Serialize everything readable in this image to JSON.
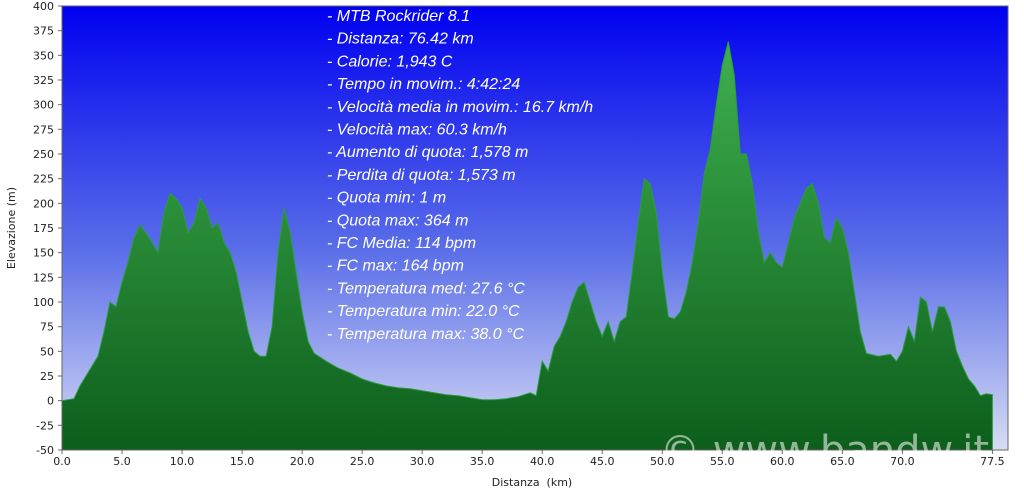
{
  "chart_data": {
    "type": "area",
    "xlabel": "Distanza  (km)",
    "ylabel": "Elevazione (m)",
    "annotations": [
      "- MTB Rockrider 8.1",
      "- Distanza: 76.42 km",
      "- Calorie: 1,943 C",
      "- Tempo in movim.: 4:42:24",
      "- Velocità media in movim.: 16.7 km/h",
      "- Velocità max: 60.3 km/h",
      "- Aumento di quota: 1,578 m",
      "- Perdita di quota: 1,573 m",
      "- Quota min: 1 m",
      "- Quota max: 364 m",
      "- FC Media: 114 bpm",
      "- FC max: 164 bpm",
      "- Temperatura med: 27.6 °C",
      "- Temperatura min: 22.0 °C",
      "- Temperatura max: 38.0 °C"
    ],
    "watermark": "© www.bandw.it",
    "xlim": [
      0,
      78.8
    ],
    "ylim": [
      -50,
      400
    ],
    "xticks": [
      {
        "value": 0,
        "label": "0.0"
      },
      {
        "value": 5,
        "label": "5.0"
      },
      {
        "value": 10,
        "label": "10.0"
      },
      {
        "value": 15,
        "label": "15.0"
      },
      {
        "value": 20,
        "label": "20.0"
      },
      {
        "value": 25,
        "label": "25.0"
      },
      {
        "value": 30,
        "label": "30.0"
      },
      {
        "value": 35,
        "label": "35.0"
      },
      {
        "value": 40,
        "label": "40.0"
      },
      {
        "value": 45,
        "label": "45.0"
      },
      {
        "value": 50,
        "label": "50.0"
      },
      {
        "value": 55,
        "label": "55.0"
      },
      {
        "value": 60,
        "label": "60.0"
      },
      {
        "value": 65,
        "label": "65.0"
      },
      {
        "value": 70,
        "label": "70.0"
      },
      {
        "value": 77.5,
        "label": "77.5"
      }
    ],
    "yticks": [
      -50,
      -25,
      0,
      25,
      50,
      75,
      100,
      125,
      150,
      175,
      200,
      225,
      250,
      275,
      300,
      325,
      350,
      375,
      400
    ],
    "color": "#2a9c3c",
    "x": [
      0,
      1,
      1.5,
      2,
      3,
      3.5,
      4,
      4.5,
      5,
      5.5,
      6,
      6.5,
      7,
      7.5,
      8,
      8.5,
      9,
      9.5,
      10,
      10.5,
      11,
      11.5,
      12,
      12.5,
      13,
      13.5,
      14,
      14.5,
      15,
      15.5,
      16,
      16.5,
      17,
      17.5,
      18,
      18.5,
      19,
      19.5,
      20,
      20.5,
      21,
      22,
      23,
      24,
      25,
      26,
      27,
      28,
      29,
      30,
      31,
      32,
      33,
      34,
      35,
      36,
      37,
      38,
      39,
      39.5,
      40,
      40.5,
      41,
      41.5,
      42,
      42.5,
      43,
      43.5,
      44,
      44.5,
      45,
      45.5,
      46,
      46.5,
      47,
      47.5,
      48,
      48.5,
      49,
      49.5,
      50,
      50.5,
      51,
      51.5,
      52,
      52.5,
      53,
      53.5,
      54,
      54.5,
      55,
      55.5,
      56,
      56.5,
      57,
      57.5,
      58,
      58.5,
      59,
      59.5,
      60,
      60.5,
      61,
      61.5,
      62,
      62.5,
      63,
      63.5,
      64,
      64.5,
      65,
      65.5,
      66,
      66.5,
      67,
      68,
      69,
      69.5,
      70,
      70.5,
      71,
      71.5,
      72,
      72.5,
      73,
      73.5,
      74,
      74.5,
      75,
      75.5,
      76,
      76.5,
      77,
      77.5
    ],
    "values": [
      0,
      2,
      15,
      25,
      45,
      70,
      100,
      95,
      120,
      140,
      165,
      178,
      170,
      160,
      150,
      190,
      210,
      205,
      195,
      170,
      180,
      205,
      195,
      175,
      180,
      160,
      150,
      130,
      100,
      70,
      50,
      45,
      45,
      75,
      150,
      195,
      170,
      130,
      90,
      60,
      48,
      40,
      33,
      28,
      22,
      18,
      15,
      13,
      12,
      10,
      8,
      6,
      5,
      3,
      1,
      1,
      2,
      4,
      8,
      5,
      40,
      30,
      55,
      65,
      80,
      100,
      115,
      120,
      100,
      80,
      65,
      80,
      60,
      80,
      85,
      130,
      180,
      225,
      220,
      190,
      130,
      85,
      83,
      90,
      110,
      140,
      180,
      230,
      255,
      300,
      340,
      364,
      330,
      250,
      250,
      220,
      170,
      140,
      150,
      140,
      135,
      160,
      185,
      200,
      215,
      220,
      200,
      165,
      160,
      185,
      175,
      150,
      110,
      70,
      48,
      45,
      47,
      40,
      50,
      75,
      60,
      105,
      100,
      70,
      95,
      95,
      80,
      50,
      35,
      22,
      15,
      5,
      7,
      6
    ]
  }
}
